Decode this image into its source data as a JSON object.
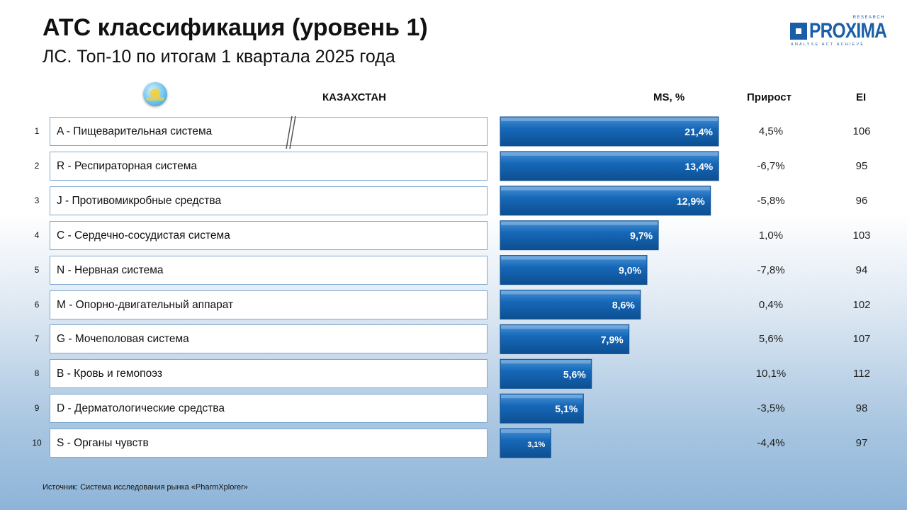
{
  "title": "АТС классификация (уровень 1)",
  "subtitle": "ЛС. Топ-10 по итогам 1 квартала 2025 года",
  "logo": {
    "text": "PROXIMA",
    "small_top": "RESEARCH",
    "tagline": "ANALYSE ACT ACHIEVE"
  },
  "header": {
    "country": "КАЗАХСТАН",
    "ms": "MS, %",
    "growth": "Прирост",
    "ei": "EI"
  },
  "colors": {
    "bar": "#1668b8",
    "bar_dark": "#0d4f91",
    "bar_light": "#4a92d6",
    "row_border": "#7fa9cf"
  },
  "icons": {
    "flag": "kazakhstan-flag-icon",
    "logo": "proxima-logo-icon"
  },
  "rows": [
    {
      "num": "1",
      "label": "A - Пищеварительная система",
      "ms_label": "21,4%",
      "growth": "4,5%",
      "ei": "106"
    },
    {
      "num": "2",
      "label": "R - Респираторная система",
      "ms_label": "13,4%",
      "growth": "-6,7%",
      "ei": "95"
    },
    {
      "num": "3",
      "label": "J - Противомикробные средства",
      "ms_label": "12,9%",
      "growth": "-5,8%",
      "ei": "96"
    },
    {
      "num": "4",
      "label": "C - Сердечно-сосудистая система",
      "ms_label": "9,7%",
      "growth": "1,0%",
      "ei": "103"
    },
    {
      "num": "5",
      "label": "N - Нервная система",
      "ms_label": "9,0%",
      "growth": "-7,8%",
      "ei": "94"
    },
    {
      "num": "6",
      "label": "M - Опорно-двигательный аппарат",
      "ms_label": "8,6%",
      "growth": "0,4%",
      "ei": "102"
    },
    {
      "num": "7",
      "label": "G - Мочеполовая система",
      "ms_label": "7,9%",
      "growth": "5,6%",
      "ei": "107"
    },
    {
      "num": "8",
      "label": "B - Кровь и гемопоэз",
      "ms_label": "5,6%",
      "growth": "10,1%",
      "ei": "112"
    },
    {
      "num": "9",
      "label": "D - Дерматологические средства",
      "ms_label": "5,1%",
      "growth": "-3,5%",
      "ei": "98"
    },
    {
      "num": "10",
      "label": "S - Органы чувств",
      "ms_label": "3,1%",
      "growth": "-4,4%",
      "ei": "97"
    }
  ],
  "chart_data": {
    "type": "bar",
    "orientation": "horizontal",
    "categories": [
      "A - Пищеварительная система",
      "R - Респираторная система",
      "J - Противомикробные средства",
      "C - Сердечно-сосудистая система",
      "N - Нервная система",
      "M - Опорно-двигательный аппарат",
      "G - Мочеполовая система",
      "B - Кровь и гемопоэз",
      "D - Дерматологические средства",
      "S - Органы чувств"
    ],
    "values": [
      21.4,
      13.4,
      12.9,
      9.7,
      9.0,
      8.6,
      7.9,
      5.6,
      5.1,
      3.1
    ],
    "growth": [
      4.5,
      -6.7,
      -5.8,
      1.0,
      -7.8,
      0.4,
      5.6,
      10.1,
      -3.5,
      -4.4
    ],
    "ei": [
      106,
      95,
      96,
      103,
      94,
      102,
      107,
      112,
      98,
      97
    ],
    "title": "АТС классификация (уровень 1)",
    "ylabel": "MS, %",
    "axis_break_on_first_bar": true,
    "grid": false,
    "legend": "none"
  },
  "source": "Источник: Система исследования рынка «PharmXplorer»"
}
